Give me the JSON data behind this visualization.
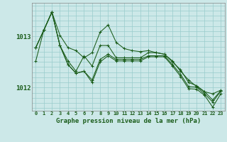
{
  "title": "Graphe pression niveau de la mer (hPa)",
  "bg_color": "#cce8e8",
  "grid_color": "#99cccc",
  "line_color": "#1a5c1a",
  "xlim": [
    -0.5,
    23.5
  ],
  "ylim": [
    1011.55,
    1013.65
  ],
  "ytick_vals": [
    1012,
    1013
  ],
  "xtick_vals": [
    0,
    1,
    2,
    3,
    4,
    5,
    6,
    7,
    8,
    9,
    10,
    11,
    12,
    13,
    14,
    15,
    16,
    17,
    18,
    19,
    20,
    21,
    22,
    23
  ],
  "series": [
    [
      1012.78,
      1013.12,
      1013.47,
      1013.02,
      1012.78,
      1012.72,
      1012.58,
      1012.68,
      1013.08,
      1013.22,
      1012.88,
      1012.76,
      1012.72,
      1012.7,
      1012.72,
      1012.68,
      1012.65,
      1012.52,
      1012.32,
      1012.15,
      1012.02,
      1011.92,
      1011.88,
      1011.95
    ],
    [
      1012.52,
      1013.12,
      1013.47,
      1012.82,
      1012.52,
      1012.32,
      1012.62,
      1012.42,
      1012.82,
      1012.82,
      1012.58,
      1012.58,
      1012.58,
      1012.58,
      1012.68,
      1012.68,
      1012.65,
      1012.5,
      1012.35,
      1012.1,
      1012.04,
      1011.92,
      1011.76,
      1011.94
    ],
    [
      1012.78,
      1013.12,
      1013.47,
      1012.82,
      1012.45,
      1012.28,
      1012.32,
      1012.15,
      1012.55,
      1012.65,
      1012.55,
      1012.55,
      1012.55,
      1012.55,
      1012.62,
      1012.62,
      1012.62,
      1012.45,
      1012.26,
      1012.02,
      1012.01,
      1011.88,
      1011.72,
      1011.93
    ],
    [
      1012.78,
      1013.12,
      1013.47,
      1012.82,
      1012.45,
      1012.28,
      1012.32,
      1012.1,
      1012.5,
      1012.62,
      1012.52,
      1012.52,
      1012.52,
      1012.52,
      1012.6,
      1012.6,
      1012.6,
      1012.42,
      1012.22,
      1011.98,
      1011.97,
      1011.85,
      1011.62,
      1011.88
    ]
  ]
}
